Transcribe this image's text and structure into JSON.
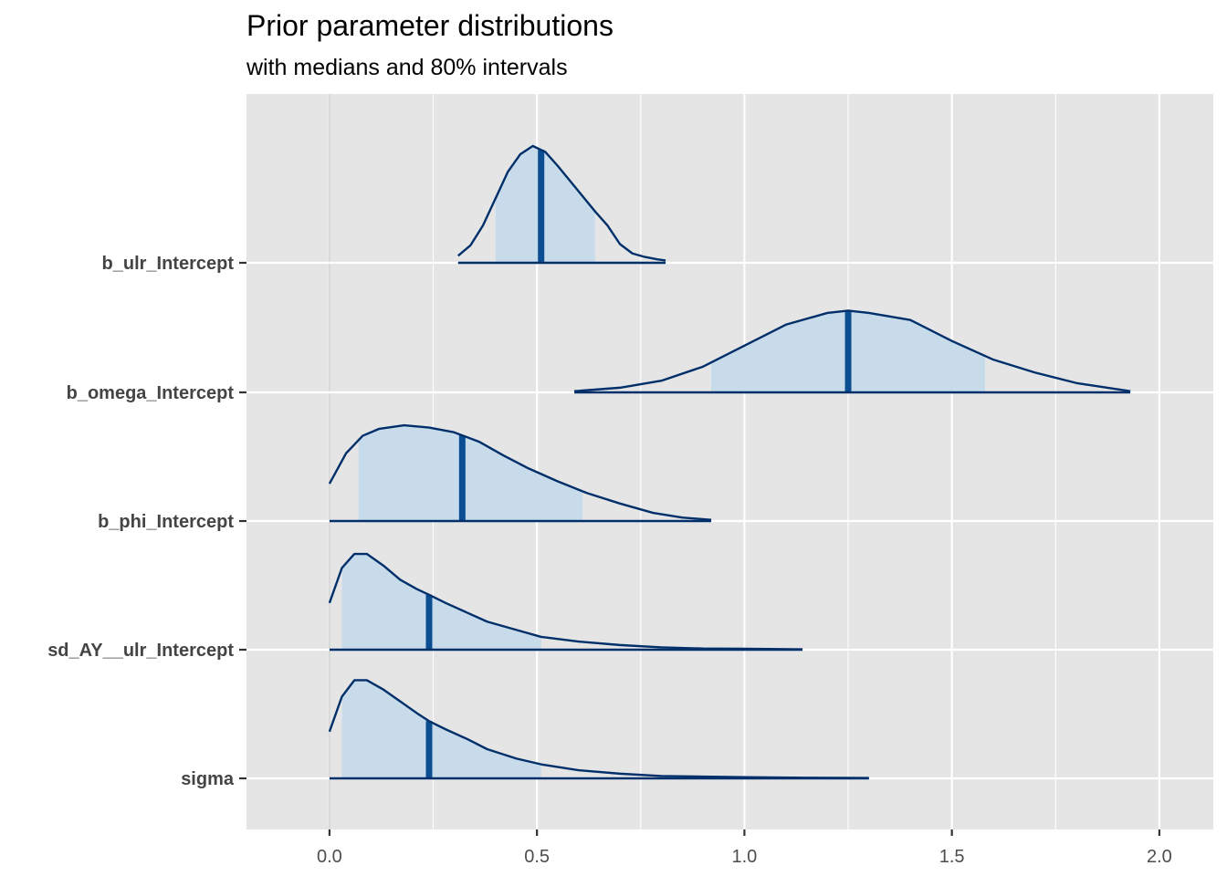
{
  "title": "Prior parameter distributions",
  "subtitle": "with medians and 80% intervals",
  "chart_data": {
    "type": "ridgeline",
    "xlim": [
      -0.2,
      2.13
    ],
    "x_ticks": [
      0.0,
      0.5,
      1.0,
      1.5,
      2.0
    ],
    "x_tick_labels": [
      "0.0",
      "0.5",
      "1.0",
      "1.5",
      "2.0"
    ],
    "grid": true,
    "colors": {
      "panel": "#e5e5e5",
      "grid": "#ffffff",
      "fill": "#c7dbea",
      "line": "#012f6a",
      "median": "#0b4f92"
    },
    "parameters": [
      {
        "name": "b_ulr_Intercept",
        "range": [
          0.31,
          0.81
        ],
        "median": 0.51,
        "interval": [
          0.4,
          0.64
        ],
        "density": [
          [
            0.31,
            0.06
          ],
          [
            0.34,
            0.15
          ],
          [
            0.37,
            0.32
          ],
          [
            0.4,
            0.55
          ],
          [
            0.43,
            0.78
          ],
          [
            0.46,
            0.93
          ],
          [
            0.49,
            1.0
          ],
          [
            0.52,
            0.95
          ],
          [
            0.55,
            0.83
          ],
          [
            0.58,
            0.7
          ],
          [
            0.61,
            0.57
          ],
          [
            0.64,
            0.44
          ],
          [
            0.67,
            0.32
          ],
          [
            0.7,
            0.16
          ],
          [
            0.73,
            0.08
          ],
          [
            0.76,
            0.05
          ],
          [
            0.79,
            0.03
          ],
          [
            0.81,
            0.02
          ]
        ]
      },
      {
        "name": "b_omega_Intercept",
        "range": [
          0.59,
          1.93
        ],
        "median": 1.25,
        "interval": [
          0.92,
          1.58
        ],
        "density": [
          [
            0.59,
            0.01
          ],
          [
            0.7,
            0.04
          ],
          [
            0.8,
            0.1
          ],
          [
            0.9,
            0.22
          ],
          [
            1.0,
            0.4
          ],
          [
            1.1,
            0.58
          ],
          [
            1.2,
            0.68
          ],
          [
            1.25,
            0.7
          ],
          [
            1.3,
            0.68
          ],
          [
            1.4,
            0.62
          ],
          [
            1.5,
            0.44
          ],
          [
            1.6,
            0.28
          ],
          [
            1.7,
            0.17
          ],
          [
            1.8,
            0.08
          ],
          [
            1.93,
            0.01
          ]
        ]
      },
      {
        "name": "b_phi_Intercept",
        "range": [
          0.0,
          0.92
        ],
        "median": 0.32,
        "interval": [
          0.07,
          0.61
        ],
        "density": [
          [
            0.0,
            0.32
          ],
          [
            0.04,
            0.58
          ],
          [
            0.08,
            0.73
          ],
          [
            0.12,
            0.79
          ],
          [
            0.18,
            0.82
          ],
          [
            0.24,
            0.8
          ],
          [
            0.3,
            0.76
          ],
          [
            0.36,
            0.68
          ],
          [
            0.42,
            0.56
          ],
          [
            0.48,
            0.45
          ],
          [
            0.55,
            0.34
          ],
          [
            0.62,
            0.24
          ],
          [
            0.7,
            0.15
          ],
          [
            0.78,
            0.07
          ],
          [
            0.85,
            0.03
          ],
          [
            0.92,
            0.01
          ]
        ]
      },
      {
        "name": "sd_AY__ulr_Intercept",
        "range": [
          0.0,
          1.14
        ],
        "median": 0.24,
        "interval": [
          0.03,
          0.51
        ],
        "density": [
          [
            0.0,
            0.4
          ],
          [
            0.03,
            0.7
          ],
          [
            0.06,
            0.82
          ],
          [
            0.09,
            0.82
          ],
          [
            0.13,
            0.72
          ],
          [
            0.17,
            0.6
          ],
          [
            0.21,
            0.52
          ],
          [
            0.24,
            0.47
          ],
          [
            0.28,
            0.4
          ],
          [
            0.33,
            0.32
          ],
          [
            0.38,
            0.24
          ],
          [
            0.45,
            0.17
          ],
          [
            0.51,
            0.11
          ],
          [
            0.6,
            0.07
          ],
          [
            0.7,
            0.04
          ],
          [
            0.8,
            0.02
          ],
          [
            0.9,
            0.01
          ],
          [
            1.0,
            0.008
          ],
          [
            1.14,
            0.003
          ]
        ]
      },
      {
        "name": "sigma",
        "range": [
          0.0,
          1.3
        ],
        "median": 0.24,
        "interval": [
          0.03,
          0.51
        ],
        "density": [
          [
            0.0,
            0.4
          ],
          [
            0.03,
            0.7
          ],
          [
            0.06,
            0.84
          ],
          [
            0.09,
            0.84
          ],
          [
            0.13,
            0.76
          ],
          [
            0.17,
            0.66
          ],
          [
            0.21,
            0.56
          ],
          [
            0.24,
            0.49
          ],
          [
            0.28,
            0.42
          ],
          [
            0.33,
            0.34
          ],
          [
            0.38,
            0.25
          ],
          [
            0.45,
            0.17
          ],
          [
            0.51,
            0.12
          ],
          [
            0.6,
            0.07
          ],
          [
            0.7,
            0.04
          ],
          [
            0.8,
            0.02
          ],
          [
            0.9,
            0.015
          ],
          [
            1.0,
            0.01
          ],
          [
            1.15,
            0.005
          ],
          [
            1.3,
            0.003
          ]
        ]
      }
    ]
  }
}
